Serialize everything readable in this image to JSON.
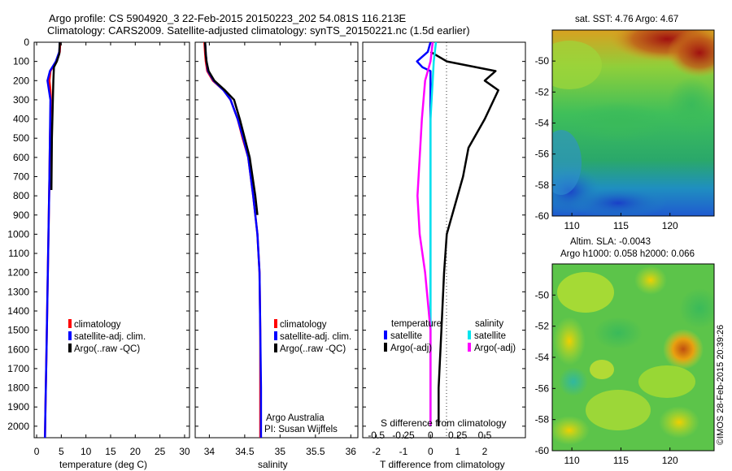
{
  "title_line1": "Argo profile: CS 5904920_3 22-Feb-2015 20150223_202 54.081S 116.213E",
  "title_line2": "Climatology: CARS2009. Satellite-adjusted climatology: synTS_20150221.nc (1.5d earlier)",
  "map_top_title": "sat. SST: 4.76 Argo: 4.67",
  "map_bottom_title_line1": "Altim. SLA: -0.0043",
  "map_bottom_title_line2": "Argo h1000: 0.058 h2000: 0.066",
  "credit": "Argo Australia",
  "pi": "PI: Susan Wijffels",
  "stamp": "©IMOS 28-Feb-2015 20:39:26",
  "colors": {
    "climatology": "#ff0000",
    "satellite": "#0000ff",
    "argo": "#000000",
    "sat_salinity": "#00e5ee",
    "argo_salinity": "#ff00ff"
  },
  "depth_axis": {
    "ticks": [
      0,
      100,
      200,
      300,
      400,
      500,
      600,
      700,
      800,
      900,
      1000,
      1100,
      1200,
      1300,
      1400,
      1500,
      1600,
      1700,
      1800,
      1900,
      2000
    ],
    "range": [
      0,
      2060
    ]
  },
  "chart_data": [
    {
      "type": "line",
      "xlabel": "temperature (deg C)",
      "xlim": [
        -0.5,
        31
      ],
      "xticks": [
        0,
        5,
        10,
        15,
        20,
        25,
        30
      ],
      "yaxis": "depth",
      "ylim": [
        0,
        2060
      ],
      "legend": [
        "climatology",
        "satellite-adj. clim.",
        "Argo(..raw -QC)"
      ],
      "series": [
        {
          "name": "climatology",
          "points": [
            [
              4.8,
              0
            ],
            [
              4.7,
              50
            ],
            [
              4.0,
              100
            ],
            [
              2.8,
              150
            ],
            [
              2.6,
              200
            ],
            [
              2.8,
              250
            ],
            [
              2.9,
              300
            ],
            [
              2.7,
              500
            ],
            [
              2.6,
              700
            ],
            [
              2.4,
              1000
            ],
            [
              2.2,
              1300
            ],
            [
              2.0,
              1600
            ],
            [
              1.8,
              1900
            ],
            [
              1.7,
              2060
            ]
          ]
        },
        {
          "name": "satellite-adj. clim.",
          "points": [
            [
              4.7,
              0
            ],
            [
              4.6,
              50
            ],
            [
              3.9,
              100
            ],
            [
              2.7,
              150
            ],
            [
              2.2,
              200
            ],
            [
              2.5,
              250
            ],
            [
              2.8,
              300
            ],
            [
              2.7,
              500
            ],
            [
              2.6,
              700
            ],
            [
              2.4,
              1000
            ],
            [
              2.2,
              1300
            ],
            [
              2.0,
              1600
            ],
            [
              1.8,
              1900
            ],
            [
              1.7,
              2060
            ]
          ]
        },
        {
          "name": "Argo(..raw -QC)",
          "points": [
            [
              4.7,
              0
            ],
            [
              4.6,
              60
            ],
            [
              4.1,
              100
            ],
            [
              3.5,
              130
            ],
            [
              3.4,
              200
            ],
            [
              3.3,
              300
            ],
            [
              3.1,
              500
            ],
            [
              3.0,
              770
            ]
          ]
        }
      ]
    },
    {
      "type": "line",
      "xlabel": "salinity",
      "xlim": [
        33.8,
        36.1
      ],
      "xticks": [
        34,
        34.5,
        35,
        35.5,
        36
      ],
      "yaxis": "depth",
      "ylim": [
        0,
        2060
      ],
      "legend": [
        "climatology",
        "satellite-adj. clim.",
        "Argo(..raw -QC)"
      ],
      "series": [
        {
          "name": "climatology",
          "points": [
            [
              33.93,
              0
            ],
            [
              33.94,
              60
            ],
            [
              33.95,
              100
            ],
            [
              33.97,
              150
            ],
            [
              34.05,
              200
            ],
            [
              34.2,
              250
            ],
            [
              34.3,
              300
            ],
            [
              34.4,
              400
            ],
            [
              34.47,
              500
            ],
            [
              34.55,
              600
            ],
            [
              34.62,
              800
            ],
            [
              34.68,
              1000
            ],
            [
              34.71,
              1200
            ],
            [
              34.72,
              1500
            ],
            [
              34.72,
              1800
            ],
            [
              34.72,
              2060
            ]
          ]
        },
        {
          "name": "satellite-adj. clim.",
          "points": [
            [
              33.94,
              0
            ],
            [
              33.95,
              60
            ],
            [
              33.96,
              100
            ],
            [
              33.98,
              150
            ],
            [
              34.06,
              200
            ],
            [
              34.2,
              250
            ],
            [
              34.3,
              300
            ],
            [
              34.4,
              400
            ],
            [
              34.48,
              500
            ],
            [
              34.55,
              600
            ],
            [
              34.62,
              800
            ],
            [
              34.68,
              1000
            ],
            [
              34.71,
              1200
            ],
            [
              34.72,
              1500
            ],
            [
              34.73,
              1800
            ],
            [
              34.73,
              2060
            ]
          ]
        },
        {
          "name": "Argo(..raw -QC)",
          "points": [
            [
              33.94,
              0
            ],
            [
              33.95,
              60
            ],
            [
              33.96,
              100
            ],
            [
              33.99,
              150
            ],
            [
              34.07,
              200
            ],
            [
              34.22,
              250
            ],
            [
              34.35,
              300
            ],
            [
              34.43,
              400
            ],
            [
              34.5,
              500
            ],
            [
              34.57,
              600
            ],
            [
              34.65,
              800
            ],
            [
              34.68,
              900
            ]
          ]
        }
      ]
    },
    {
      "type": "line",
      "xlabel": "T difference from climatology",
      "xlabel_top": "S difference from climatology",
      "xlim": [
        -2.5,
        3.5
      ],
      "xticks": [
        -2,
        -1,
        0,
        1,
        2
      ],
      "xticks_top": [
        "-0.5",
        "-0.25",
        "0",
        "0.25",
        "0.5"
      ],
      "yaxis": "depth",
      "ylim": [
        0,
        2060
      ],
      "legend_temperature": "temperature",
      "legend_salinity": "salinity",
      "legend": [
        "satellite",
        "Argo(-adj)",
        "satellite",
        "Argo(-adj)"
      ],
      "series": [
        {
          "name": "satellite",
          "group": "temperature",
          "points": [
            [
              0,
              0
            ],
            [
              -0.1,
              50
            ],
            [
              -0.5,
              100
            ],
            [
              -0.3,
              130
            ],
            [
              0,
              150
            ],
            [
              0,
              300
            ],
            [
              0,
              600
            ],
            [
              0,
              900
            ],
            [
              0,
              1200
            ],
            [
              0,
              1600
            ],
            [
              0,
              2000
            ]
          ]
        },
        {
          "name": "Argo(-adj)",
          "group": "temperature",
          "points": [
            [
              0,
              50
            ],
            [
              0.6,
              100
            ],
            [
              2.4,
              150
            ],
            [
              2.0,
              200
            ],
            [
              2.5,
              250
            ],
            [
              2.0,
              400
            ],
            [
              1.4,
              550
            ],
            [
              1.2,
              700
            ],
            [
              0.9,
              850
            ],
            [
              0.6,
              1000
            ],
            [
              0.5,
              1200
            ],
            [
              0.4,
              1500
            ],
            [
              0.3,
              1800
            ],
            [
              0.3,
              2000
            ]
          ]
        },
        {
          "name": "satellite",
          "group": "salinity",
          "points": [
            [
              0.05,
              0
            ],
            [
              0.03,
              100
            ],
            [
              0.02,
              200
            ],
            [
              0.0,
              400
            ],
            [
              0.0,
              600
            ],
            [
              0.0,
              800
            ],
            [
              0.0,
              1100
            ],
            [
              0.0,
              1500
            ],
            [
              0.0,
              2000
            ]
          ]
        },
        {
          "name": "Argo(-adj)",
          "group": "salinity",
          "points": [
            [
              0.02,
              0
            ],
            [
              0.0,
              100
            ],
            [
              -0.05,
              200
            ],
            [
              -0.08,
              400
            ],
            [
              -0.1,
              600
            ],
            [
              -0.12,
              800
            ],
            [
              -0.1,
              1000
            ],
            [
              -0.05,
              1200
            ],
            [
              0,
              1500
            ],
            [
              0,
              2000
            ]
          ]
        }
      ]
    },
    {
      "type": "heatmap",
      "name": "sat. SST map",
      "xlim": [
        108,
        124.5
      ],
      "ylim": [
        -60,
        -48
      ],
      "xticks": [
        110,
        115,
        120
      ],
      "yticks": [
        -50,
        -52,
        -54,
        -56,
        -58,
        -60
      ]
    },
    {
      "type": "heatmap",
      "name": "Altim. SLA map",
      "xlim": [
        108,
        124.5
      ],
      "ylim": [
        -60,
        -48
      ],
      "xticks": [
        110,
        115,
        120
      ],
      "yticks": [
        -50,
        -52,
        -54,
        -56,
        -58,
        -60
      ]
    }
  ]
}
